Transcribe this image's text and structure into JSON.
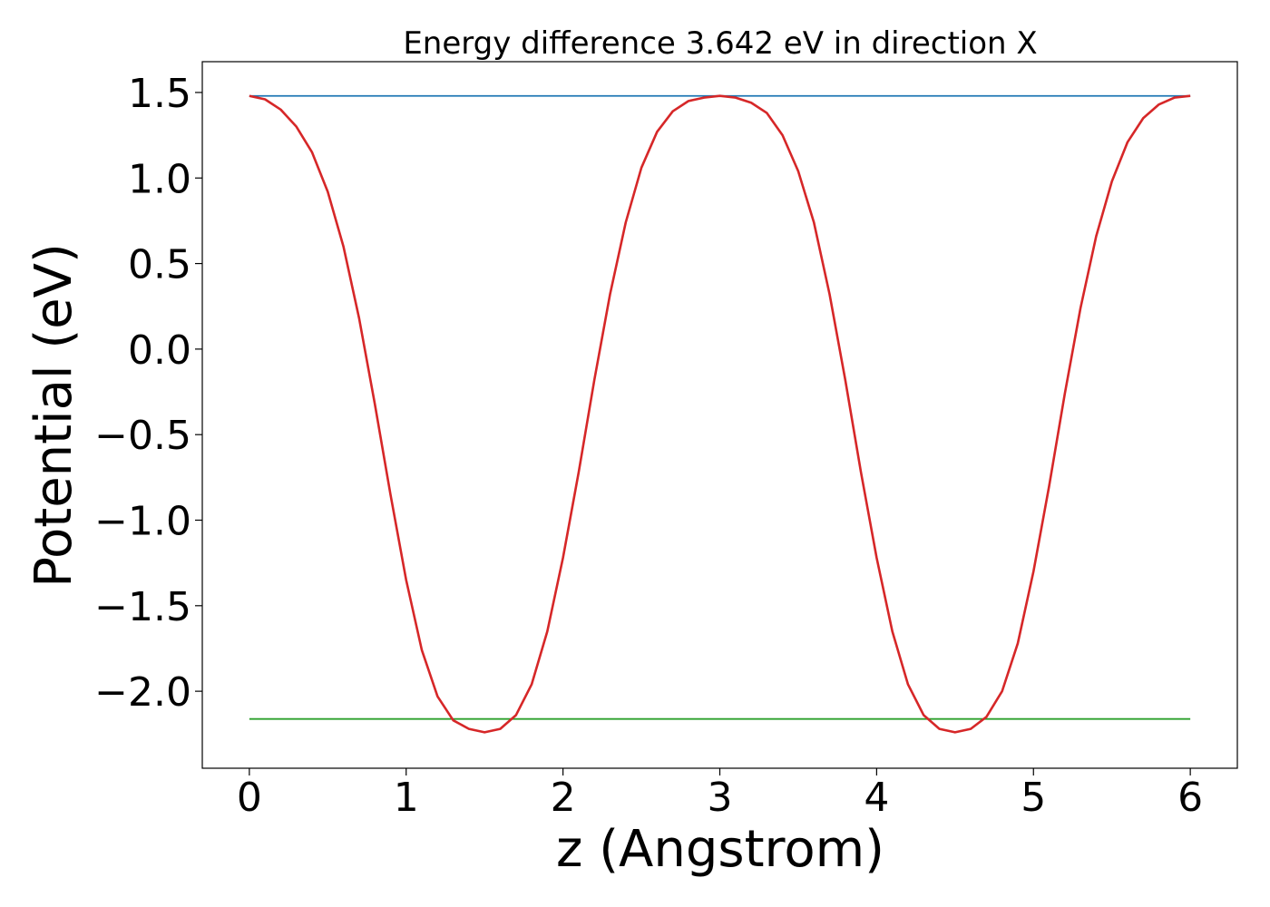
{
  "chart_data": {
    "type": "line",
    "title": "Energy difference 3.642 eV in direction X",
    "xlabel": "z (Angstrom)",
    "ylabel": "Potential (eV)",
    "xlim": [
      -0.3,
      6.3
    ],
    "ylim": [
      -2.45,
      1.68
    ],
    "xticks": [
      0,
      1,
      2,
      3,
      4,
      5,
      6
    ],
    "xtick_labels": [
      "0",
      "1",
      "2",
      "3",
      "4",
      "5",
      "6"
    ],
    "yticks": [
      1.5,
      1.0,
      0.5,
      0.0,
      -0.5,
      -1.0,
      -1.5,
      -2.0
    ],
    "ytick_labels": [
      "1.5",
      "1.0",
      "0.5",
      "0.0",
      "−0.5",
      "−1.0",
      "−1.5",
      "−2.0"
    ],
    "grid": false,
    "series": [
      {
        "color": "#1f77b4",
        "x": [
          0,
          6
        ],
        "y": [
          1.48,
          1.48
        ]
      },
      {
        "color": "#2ca02c",
        "x": [
          0,
          6
        ],
        "y": [
          -2.162,
          -2.162
        ]
      },
      {
        "color": "#d62728",
        "x": [
          0.0,
          0.1,
          0.2,
          0.3,
          0.4,
          0.5,
          0.6,
          0.7,
          0.8,
          0.9,
          1.0,
          1.1,
          1.2,
          1.3,
          1.4,
          1.5,
          1.6,
          1.7,
          1.8,
          1.9,
          2.0,
          2.1,
          2.2,
          2.3,
          2.4,
          2.5,
          2.6,
          2.7,
          2.8,
          2.9,
          3.0,
          3.1,
          3.2,
          3.3,
          3.4,
          3.5,
          3.6,
          3.7,
          3.8,
          3.9,
          4.0,
          4.1,
          4.2,
          4.3,
          4.4,
          4.5,
          4.6,
          4.7,
          4.8,
          4.9,
          5.0,
          5.1,
          5.2,
          5.3,
          5.4,
          5.5,
          5.6,
          5.7,
          5.8,
          5.9,
          6.0
        ],
        "y": [
          1.48,
          1.46,
          1.4,
          1.3,
          1.15,
          0.92,
          0.6,
          0.18,
          -0.32,
          -0.85,
          -1.35,
          -1.76,
          -2.03,
          -2.17,
          -2.22,
          -2.24,
          -2.22,
          -2.14,
          -1.96,
          -1.65,
          -1.22,
          -0.72,
          -0.18,
          0.32,
          0.74,
          1.06,
          1.27,
          1.39,
          1.45,
          1.47,
          1.48,
          1.47,
          1.44,
          1.38,
          1.25,
          1.04,
          0.74,
          0.32,
          -0.18,
          -0.72,
          -1.22,
          -1.65,
          -1.96,
          -2.14,
          -2.22,
          -2.24,
          -2.22,
          -2.15,
          -2.0,
          -1.72,
          -1.3,
          -0.8,
          -0.26,
          0.24,
          0.66,
          0.98,
          1.21,
          1.35,
          1.43,
          1.47,
          1.48
        ]
      }
    ]
  }
}
